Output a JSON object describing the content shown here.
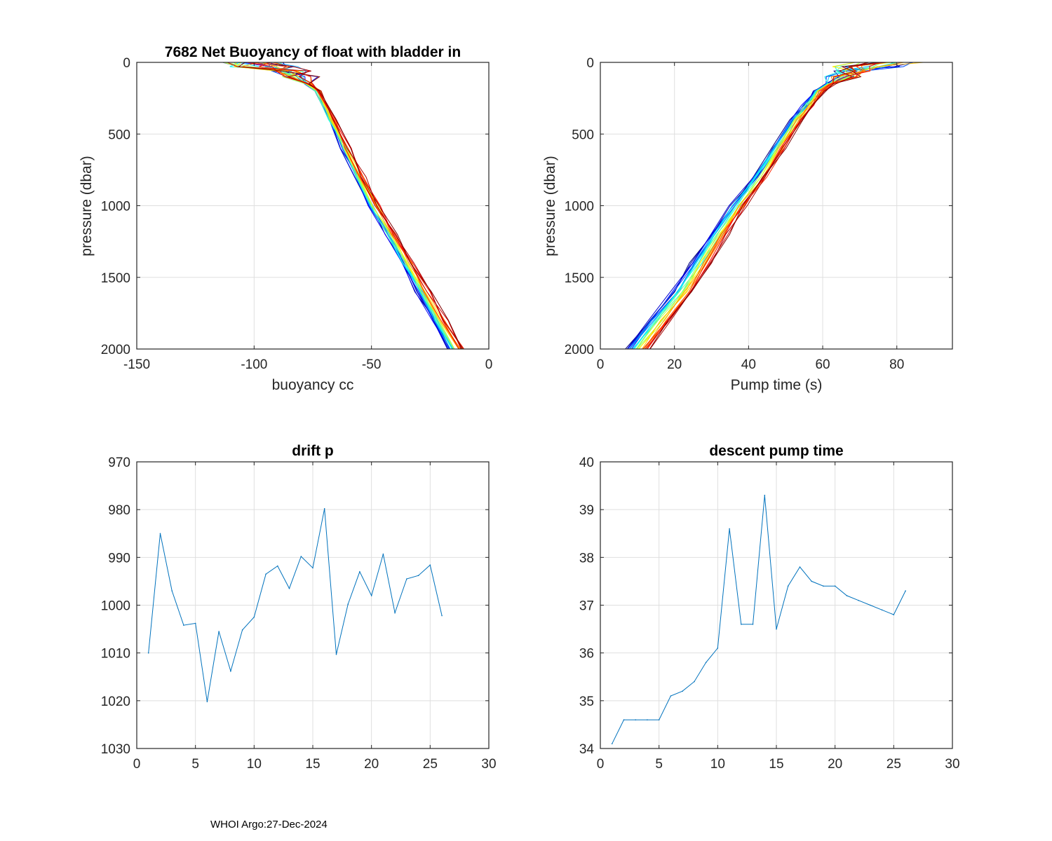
{
  "figure": {
    "footer": "WHOI Argo:27-Dec-2024"
  },
  "chart_data": [
    {
      "id": "buoyancy",
      "type": "line",
      "title": "7682 Net Buoyancy of float with bladder in",
      "xlabel": "buoyancy cc",
      "ylabel": "pressure (dbar)",
      "xlim": [
        -150,
        0
      ],
      "ylim": [
        0,
        2000
      ],
      "y_reversed": true,
      "grid": true,
      "xticks": [
        -150,
        -100,
        -50,
        0
      ],
      "xtick_labels": [
        "-150",
        "-100",
        "-50",
        "0"
      ],
      "yticks": [
        0,
        500,
        1000,
        1500,
        2000
      ],
      "ytick_labels": [
        "0",
        "500",
        "1000",
        "1500",
        "2000"
      ],
      "profiles": {
        "count": 26,
        "colormap": "jet",
        "pressure": [
          0,
          30,
          60,
          100,
          150,
          200,
          400,
          600,
          800,
          1000,
          1200,
          1400,
          1600,
          1800,
          2000
        ],
        "base": [
          -92,
          -88,
          -84,
          -80,
          -77,
          -73,
          -67,
          -61,
          -55,
          -49,
          -42,
          -35,
          -28,
          -21,
          -14
        ],
        "example_first": [
          -95,
          -90,
          -86,
          -81,
          -78,
          -75,
          -69,
          -63,
          -57,
          -50,
          -43,
          -36,
          -29,
          -22,
          -15
        ],
        "example_last": [
          -102,
          -96,
          -92,
          -86,
          -80,
          -74,
          -66,
          -59,
          -53,
          -48,
          -41,
          -34,
          -27,
          -20,
          -13
        ]
      }
    },
    {
      "id": "pump",
      "type": "line",
      "title": "",
      "xlabel": "Pump time (s)",
      "ylabel": "pressure (dbar)",
      "xlim": [
        0,
        95
      ],
      "ylim": [
        0,
        2000
      ],
      "y_reversed": true,
      "grid": true,
      "xticks": [
        0,
        20,
        40,
        60,
        80
      ],
      "xtick_labels": [
        "0",
        "20",
        "40",
        "60",
        "80"
      ],
      "yticks": [
        0,
        500,
        1000,
        1500,
        2000
      ],
      "ytick_labels": [
        "0",
        "500",
        "1000",
        "1500",
        "2000"
      ],
      "profiles": {
        "count": 26,
        "colormap": "jet",
        "pressure": [
          0,
          30,
          60,
          100,
          150,
          200,
          300,
          400,
          600,
          800,
          1000,
          1200,
          1400,
          1600,
          1800,
          2000
        ],
        "base": [
          78,
          72,
          68,
          65,
          62,
          59,
          56,
          53,
          48,
          43,
          37,
          32,
          27,
          22,
          16,
          10
        ]
      }
    },
    {
      "id": "drift",
      "type": "line",
      "title": "drift p",
      "xlabel": "",
      "ylabel": "",
      "xlim": [
        0,
        30
      ],
      "ylim": [
        970,
        1030
      ],
      "y_reversed": true,
      "grid": true,
      "color": "#0072BD",
      "xticks": [
        0,
        5,
        10,
        15,
        20,
        25,
        30
      ],
      "xtick_labels": [
        "0",
        "5",
        "10",
        "15",
        "20",
        "25",
        "30"
      ],
      "yticks": [
        970,
        980,
        990,
        1000,
        1010,
        1020,
        1030
      ],
      "ytick_labels": [
        "970",
        "980",
        "990",
        "1000",
        "1010",
        "1020",
        "1030"
      ],
      "x": [
        1,
        2,
        3,
        4,
        5,
        6,
        7,
        8,
        9,
        10,
        11,
        12,
        13,
        14,
        15,
        16,
        17,
        18,
        19,
        20,
        21,
        22,
        23,
        24,
        25,
        26
      ],
      "values": [
        1010,
        985,
        997,
        1004.2,
        1003.8,
        1020.2,
        1005.5,
        1013.8,
        1005.2,
        1002.5,
        993.5,
        991.8,
        996.5,
        989.8,
        992.2,
        979.8,
        1010.3,
        999.8,
        993,
        998,
        989.3,
        1001.6,
        994.5,
        993.8,
        991.6,
        1002.2
      ]
    },
    {
      "id": "descent",
      "type": "line",
      "title": "descent pump time",
      "xlabel": "",
      "ylabel": "",
      "xlim": [
        0,
        30
      ],
      "ylim": [
        34,
        40
      ],
      "y_reversed": false,
      "grid": true,
      "color": "#0072BD",
      "xticks": [
        0,
        5,
        10,
        15,
        20,
        25,
        30
      ],
      "xtick_labels": [
        "0",
        "5",
        "10",
        "15",
        "20",
        "25",
        "30"
      ],
      "yticks": [
        34,
        35,
        36,
        37,
        38,
        39,
        40
      ],
      "ytick_labels": [
        "34",
        "35",
        "36",
        "37",
        "38",
        "39",
        "40"
      ],
      "x": [
        1,
        2,
        3,
        4,
        5,
        6,
        7,
        8,
        9,
        10,
        11,
        12,
        13,
        14,
        15,
        16,
        17,
        18,
        19,
        20,
        21,
        22,
        23,
        24,
        25,
        26
      ],
      "values": [
        34.1,
        34.6,
        34.6,
        34.6,
        34.6,
        35.1,
        35.2,
        35.4,
        35.8,
        36.1,
        38.6,
        36.6,
        36.6,
        39.3,
        36.5,
        37.4,
        37.8,
        37.5,
        37.4,
        37.4,
        37.2,
        37.1,
        37.0,
        36.9,
        36.8,
        37.3
      ]
    }
  ]
}
